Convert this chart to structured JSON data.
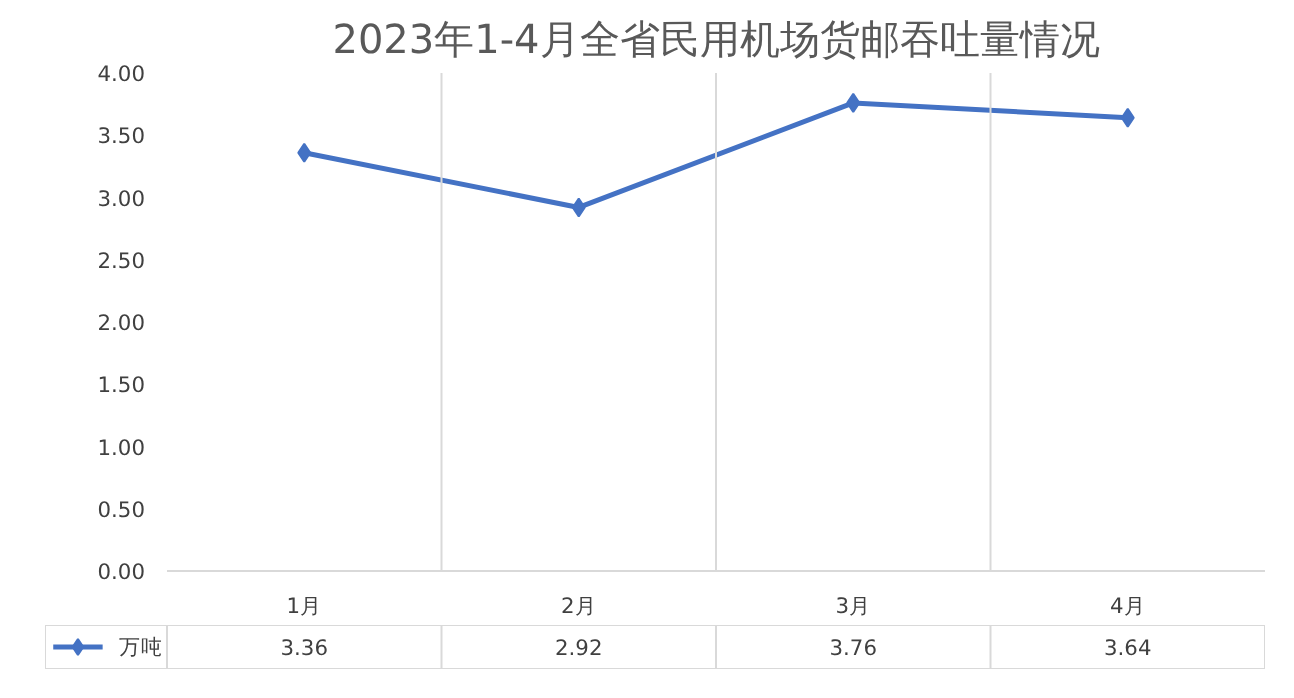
{
  "chart_data": {
    "type": "line",
    "title": "2023年1-4月全省民用机场货邮吞吐量情况",
    "categories": [
      "1月",
      "2月",
      "3月",
      "4月"
    ],
    "series": [
      {
        "name": "万吨",
        "color": "#4472c4",
        "values": [
          3.36,
          2.92,
          3.76,
          3.64
        ]
      }
    ],
    "ylim": [
      0,
      4
    ],
    "yticks": [
      "0.00",
      "0.50",
      "1.00",
      "1.50",
      "2.00",
      "2.50",
      "3.00",
      "3.50",
      "4.00"
    ],
    "grid": "x",
    "legend": "bottom left",
    "marker": "diamond",
    "line_style": "solid",
    "data_labels": true
  }
}
